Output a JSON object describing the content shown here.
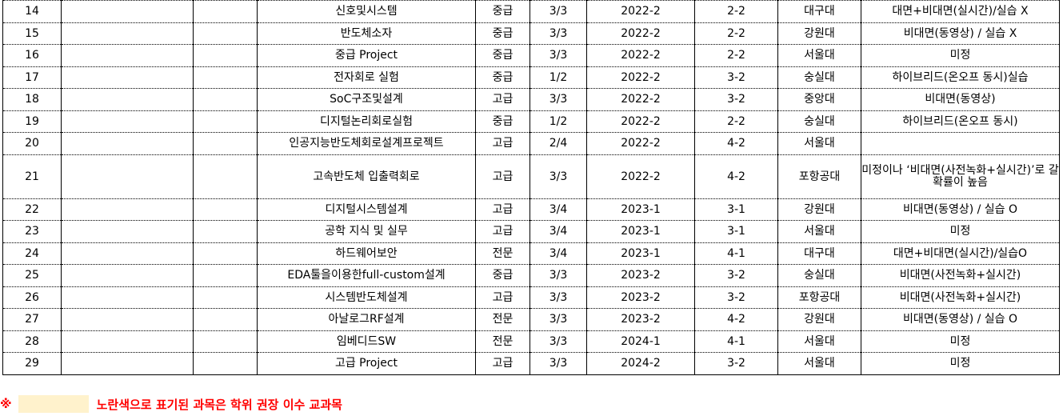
{
  "rows": [
    {
      "no": "14",
      "name": "신호및시스템",
      "level": "중급",
      "credits": "3/3",
      "term": "2022-2",
      "grade": "2-2",
      "school": "대구대",
      "mode": "대면+비대면(실시간)/실습 X"
    },
    {
      "no": "15",
      "name": "반도체소자",
      "level": "중급",
      "credits": "3/3",
      "term": "2022-2",
      "grade": "2-2",
      "school": "강원대",
      "mode": "비대면(동영상) / 실습 X"
    },
    {
      "no": "16",
      "name": "중급 Project",
      "level": "중급",
      "credits": "3/3",
      "term": "2022-2",
      "grade": "2-2",
      "school": "서울대",
      "mode": "미정"
    },
    {
      "no": "17",
      "name": "전자회로 실험",
      "level": "중급",
      "credits": "1/2",
      "term": "2022-2",
      "grade": "3-2",
      "school": "숭실대",
      "mode": "하이브리드(온오프 동시)실습"
    },
    {
      "no": "18",
      "name": "SoC구조및설계",
      "level": "고급",
      "credits": "3/3",
      "term": "2022-2",
      "grade": "3-2",
      "school": "중앙대",
      "mode": "비대면(동영상)"
    },
    {
      "no": "19",
      "name": "디지털논리회로실험",
      "level": "중급",
      "credits": "1/2",
      "term": "2022-2",
      "grade": "2-2",
      "school": "숭실대",
      "mode": "하이브리드(온오프 동시)"
    },
    {
      "no": "20",
      "name": "인공지능반도체회로설계프로젝트",
      "level": "고급",
      "credits": "2/4",
      "term": "2022-2",
      "grade": "4-2",
      "school": "서울대",
      "mode": ""
    },
    {
      "no": "21",
      "name": "고속반도체 입출력회로",
      "level": "고급",
      "credits": "3/3",
      "term": "2022-2",
      "grade": "4-2",
      "school": "포항공대",
      "mode": "미정이나 ‘비대면(사전녹화+실시간)’로 갈 확률이 높음"
    },
    {
      "no": "22",
      "name": "디지털시스템설계",
      "level": "고급",
      "credits": "3/4",
      "term": "2023-1",
      "grade": "3-1",
      "school": "강원대",
      "mode": "비대면(동영상) / 실습 O"
    },
    {
      "no": "23",
      "name": "공학 지식 및 실무",
      "level": "고급",
      "credits": "3/4",
      "term": "2023-1",
      "grade": "3-1",
      "school": "서울대",
      "mode": "미정"
    },
    {
      "no": "24",
      "name": "하드웨어보안",
      "level": "전문",
      "credits": "3/4",
      "term": "2023-1",
      "grade": "4-1",
      "school": "대구대",
      "mode": "대면+비대면(실시간)/실습O"
    },
    {
      "no": "25",
      "name": "EDA툴을이용한full-custom설계",
      "level": "중급",
      "credits": "3/3",
      "term": "2023-2",
      "grade": "3-2",
      "school": "숭실대",
      "mode": "비대면(사전녹화+실시간)"
    },
    {
      "no": "26",
      "name": "시스템반도체설계",
      "level": "고급",
      "credits": "3/3",
      "term": "2023-2",
      "grade": "3-2",
      "school": "포항공대",
      "mode": "비대면(사전녹화+실시간)"
    },
    {
      "no": "27",
      "name": "아날로그RF설계",
      "level": "전문",
      "credits": "3/3",
      "term": "2023-2",
      "grade": "4-2",
      "school": "강원대",
      "mode": "비대면(동영상) / 실습 O"
    },
    {
      "no": "28",
      "name": "임베디드SW",
      "level": "전문",
      "credits": "3/3",
      "term": "2024-1",
      "grade": "4-1",
      "school": "서울대",
      "mode": "미정"
    },
    {
      "no": "29",
      "name": "고급 Project",
      "level": "고급",
      "credits": "3/3",
      "term": "2024-2",
      "grade": "3-2",
      "school": "서울대",
      "mode": "미정"
    }
  ],
  "footnote": {
    "symbol": "※",
    "text": "노란색으로 표기된 과목은 학위 권장 이수 교과목",
    "highlight_color": "#fff2cc",
    "text_color": "#ff0000"
  }
}
